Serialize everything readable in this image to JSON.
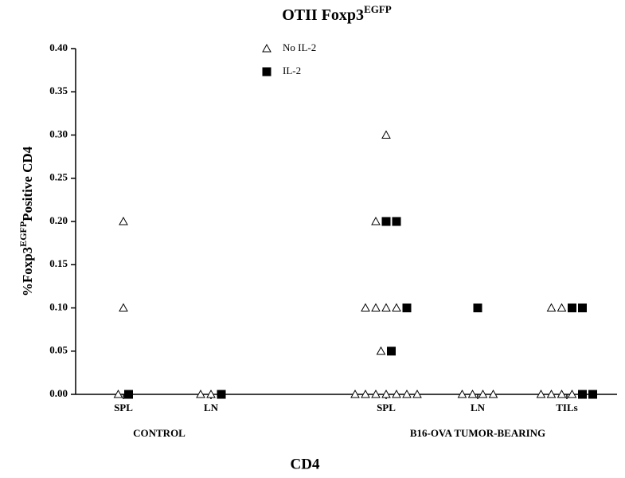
{
  "chart_data": {
    "type": "scatter",
    "title": {
      "text": "OTII Foxp3",
      "superscript": "EGFP"
    },
    "y_label": {
      "before": "%Foxp3",
      "superscript": "EGFP",
      "after": "Positive CD4"
    },
    "x_label": "CD4",
    "groups": [
      {
        "name": "CONTROL",
        "categories": [
          "SPL",
          "LN"
        ]
      },
      {
        "name": "B16-OVA TUMOR-BEARING",
        "categories": [
          "SPL",
          "LN",
          "TILs"
        ]
      }
    ],
    "ylim": [
      0,
      0.4
    ],
    "yticks": [
      {
        "value": 0,
        "label": "0.00"
      },
      {
        "value": 0.05,
        "label": "0.05"
      },
      {
        "value": 0.1,
        "label": "0.10"
      },
      {
        "value": 0.15,
        "label": "0.15"
      },
      {
        "value": 0.2,
        "label": "0.20"
      },
      {
        "value": 0.25,
        "label": "0.25"
      },
      {
        "value": 0.3,
        "label": "0.30"
      },
      {
        "value": 0.35,
        "label": "0.35"
      },
      {
        "value": 0.4,
        "label": "0.40"
      }
    ],
    "series": [
      {
        "name": "No IL-2",
        "marker": "triangle",
        "color": "#ffffff",
        "x": [
          0,
          0,
          0,
          1,
          1,
          2,
          2,
          2,
          2,
          2,
          2,
          2,
          2,
          2,
          2,
          2,
          2,
          2,
          2,
          3,
          3,
          3,
          3,
          4,
          4,
          4,
          4,
          4,
          4
        ],
        "values": [
          0.2,
          0.1,
          0,
          0,
          0,
          0.3,
          0.2,
          0.1,
          0.1,
          0.1,
          0.1,
          0.05,
          0,
          0,
          0,
          0,
          0,
          0,
          0,
          0,
          0,
          0,
          0,
          0.1,
          0.1,
          0,
          0,
          0,
          0
        ]
      },
      {
        "name": "IL-2",
        "marker": "square",
        "color": "#000000",
        "x": [
          0,
          1,
          2,
          2,
          2,
          2,
          3,
          4,
          4,
          4,
          4
        ],
        "values": [
          0,
          0,
          0.2,
          0.2,
          0.1,
          0.05,
          0.1,
          0.1,
          0.1,
          0,
          0
        ]
      }
    ]
  }
}
